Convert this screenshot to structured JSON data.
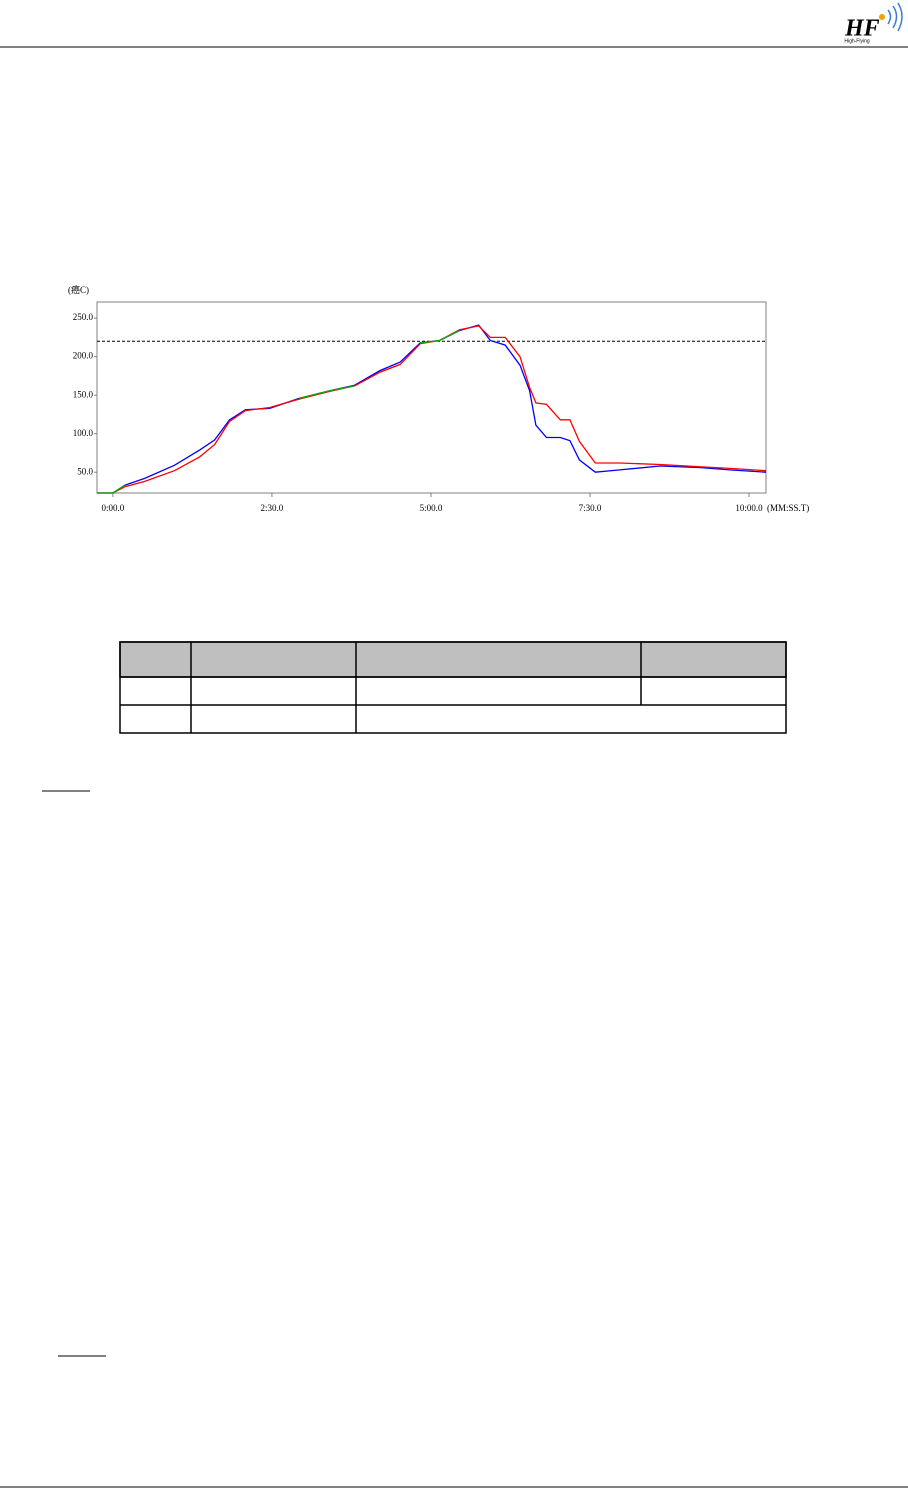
{
  "header": {
    "logo": "HF",
    "logo_subtitle": "High-Flying"
  },
  "chart_data": {
    "type": "line",
    "y_label": "(癌C)",
    "x_label": "(MM:SS.T)",
    "x": [
      -15,
      0,
      11,
      30,
      58,
      82,
      96,
      110,
      125,
      148,
      176,
      205,
      228,
      252,
      271,
      290,
      308,
      327,
      345,
      356,
      370,
      384,
      393,
      399,
      409,
      422,
      431,
      440,
      455,
      478,
      516,
      554,
      582,
      616
    ],
    "series": [
      {
        "color": "#0000ff",
        "values": [
          23,
          23,
          33,
          42,
          59,
          79,
          92,
          118,
          131,
          133,
          146,
          156,
          163,
          182,
          193,
          218,
          221,
          234,
          241,
          221,
          215,
          189,
          156,
          111,
          95,
          95,
          91,
          66,
          50,
          53,
          58,
          56,
          53,
          50
        ]
      },
      {
        "color": "#ff0000",
        "values": [
          23,
          23,
          31,
          38,
          52,
          70,
          86,
          116,
          130,
          134,
          145,
          155,
          162,
          180,
          190,
          217,
          221,
          235,
          240,
          225,
          225,
          200,
          160,
          140,
          138,
          118,
          118,
          90,
          62,
          62,
          60,
          57,
          55,
          52
        ]
      },
      {
        "color": "#00b000",
        "values": [
          23,
          23,
          33,
          null,
          null,
          null,
          null,
          null,
          130,
          null,
          146,
          156,
          162,
          null,
          null,
          218,
          221,
          234,
          null,
          null,
          null,
          null,
          null,
          null,
          null,
          null,
          null,
          null,
          null,
          null,
          null,
          null,
          null,
          null
        ]
      }
    ],
    "reference_line": 220,
    "xlim": [
      -15,
      616
    ],
    "ylim": [
      23,
      271
    ],
    "xticks": [
      {
        "value": 0,
        "label": "0:00.0"
      },
      {
        "value": 150,
        "label": "2:30.0"
      },
      {
        "value": 300,
        "label": "5:00.0"
      },
      {
        "value": 450,
        "label": "7:30.0"
      },
      {
        "value": 600,
        "label": "10:00.0"
      }
    ],
    "yticks": [
      {
        "value": 50,
        "label": "50.0"
      },
      {
        "value": 100,
        "label": "100.0"
      },
      {
        "value": 150,
        "label": "150.0"
      },
      {
        "value": 200,
        "label": "200.0"
      },
      {
        "value": 250,
        "label": "250.0"
      }
    ]
  }
}
